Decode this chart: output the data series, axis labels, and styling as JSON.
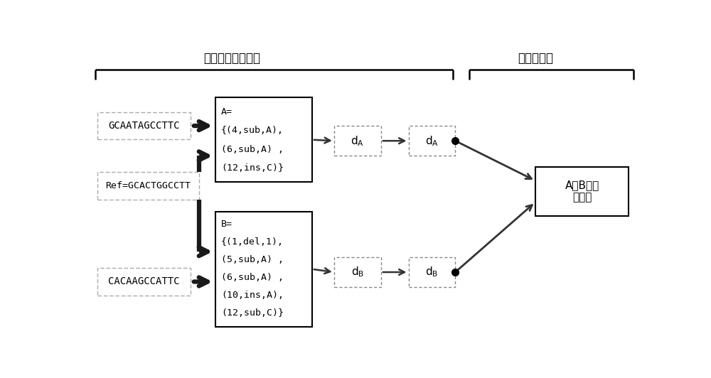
{
  "title_left": "云环境下的客户端",
  "title_right": "云计算平台",
  "box_seq1": "GCAATAGCCTTC",
  "box_ref": "Ref=GCACTGGCCTT",
  "box_seq2": "CACAAGCCATTC",
  "box_A_lines": [
    "A=",
    "{(4,sub,A),",
    "(6,sub,A) ,",
    "(12,ins,C)}"
  ],
  "box_B_lines": [
    "B=",
    "{(1,del,1),",
    "(5,sub,A) ,",
    "(6,sub,A) ,",
    "(10,ins,A),",
    "(12,sub,C)}"
  ],
  "box_result": "A与B的编\n辑距离",
  "bg_color": "#ffffff",
  "text_color": "#000000",
  "arrow_color": "#1a1a1a",
  "font_size_title": 12,
  "font_size_seq": 10,
  "font_size_content": 9.5,
  "font_size_d": 11,
  "font_size_result": 11
}
